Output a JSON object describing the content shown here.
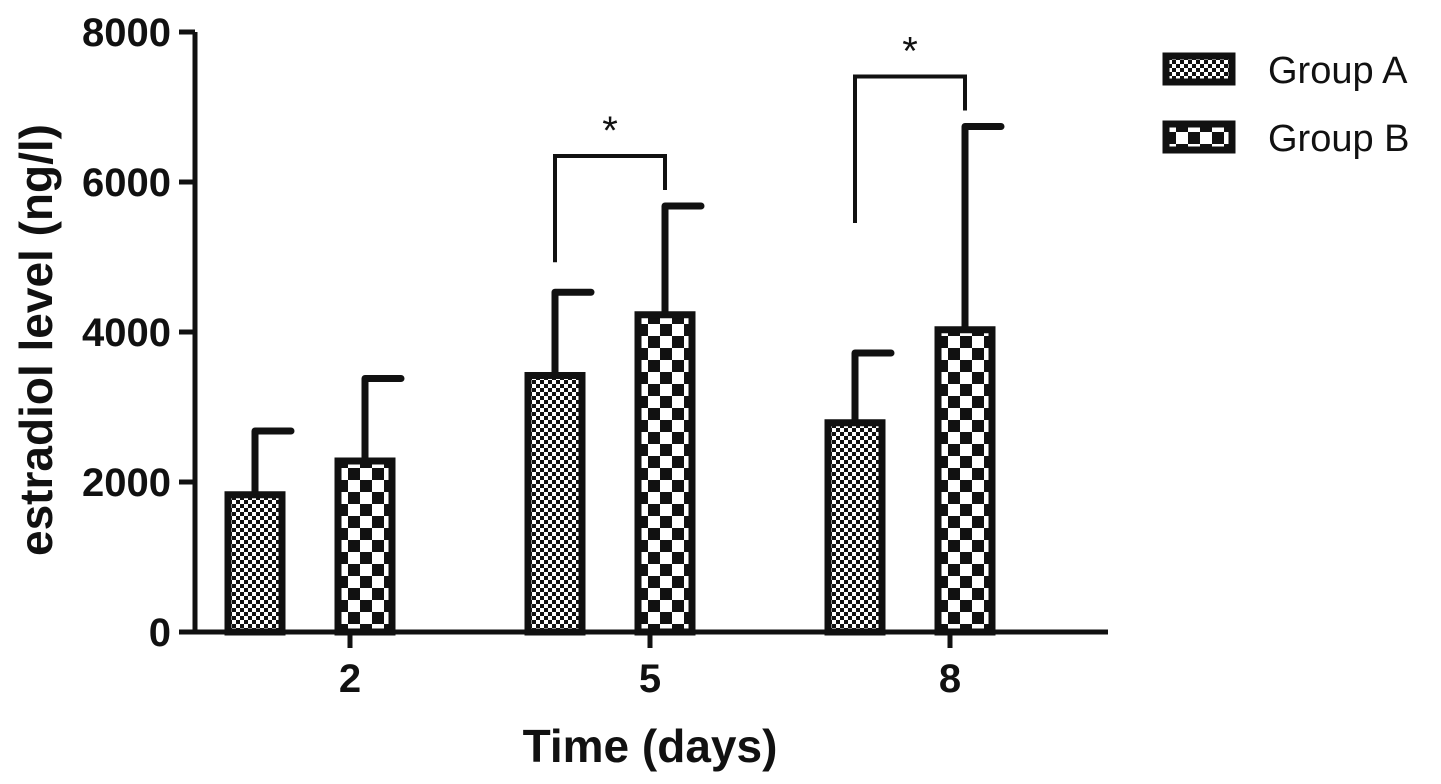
{
  "chart_data": {
    "type": "bar",
    "xlabel": "Time (days)",
    "ylabel": "estradiol level (ng/l)",
    "categories": [
      "2",
      "5",
      "8"
    ],
    "ylim": [
      0,
      8000
    ],
    "yticks": [
      "0",
      "2000",
      "4000",
      "6000",
      "8000"
    ],
    "series": [
      {
        "name": "Group A",
        "pattern": "fine-checker",
        "values": [
          1830,
          3420,
          2790
        ],
        "error_upper": [
          850,
          1110,
          930
        ]
      },
      {
        "name": "Group B",
        "pattern": "coarse-checker",
        "values": [
          2280,
          4230,
          4030
        ],
        "error_upper": [
          1100,
          1450,
          2710
        ]
      }
    ],
    "annotations": [
      {
        "category": "5",
        "label": "*"
      },
      {
        "category": "8",
        "label": "*"
      }
    ],
    "legend_position": "top-right",
    "grid": false,
    "colors": {
      "ink": "#111111",
      "fill": "#ffffff"
    }
  }
}
